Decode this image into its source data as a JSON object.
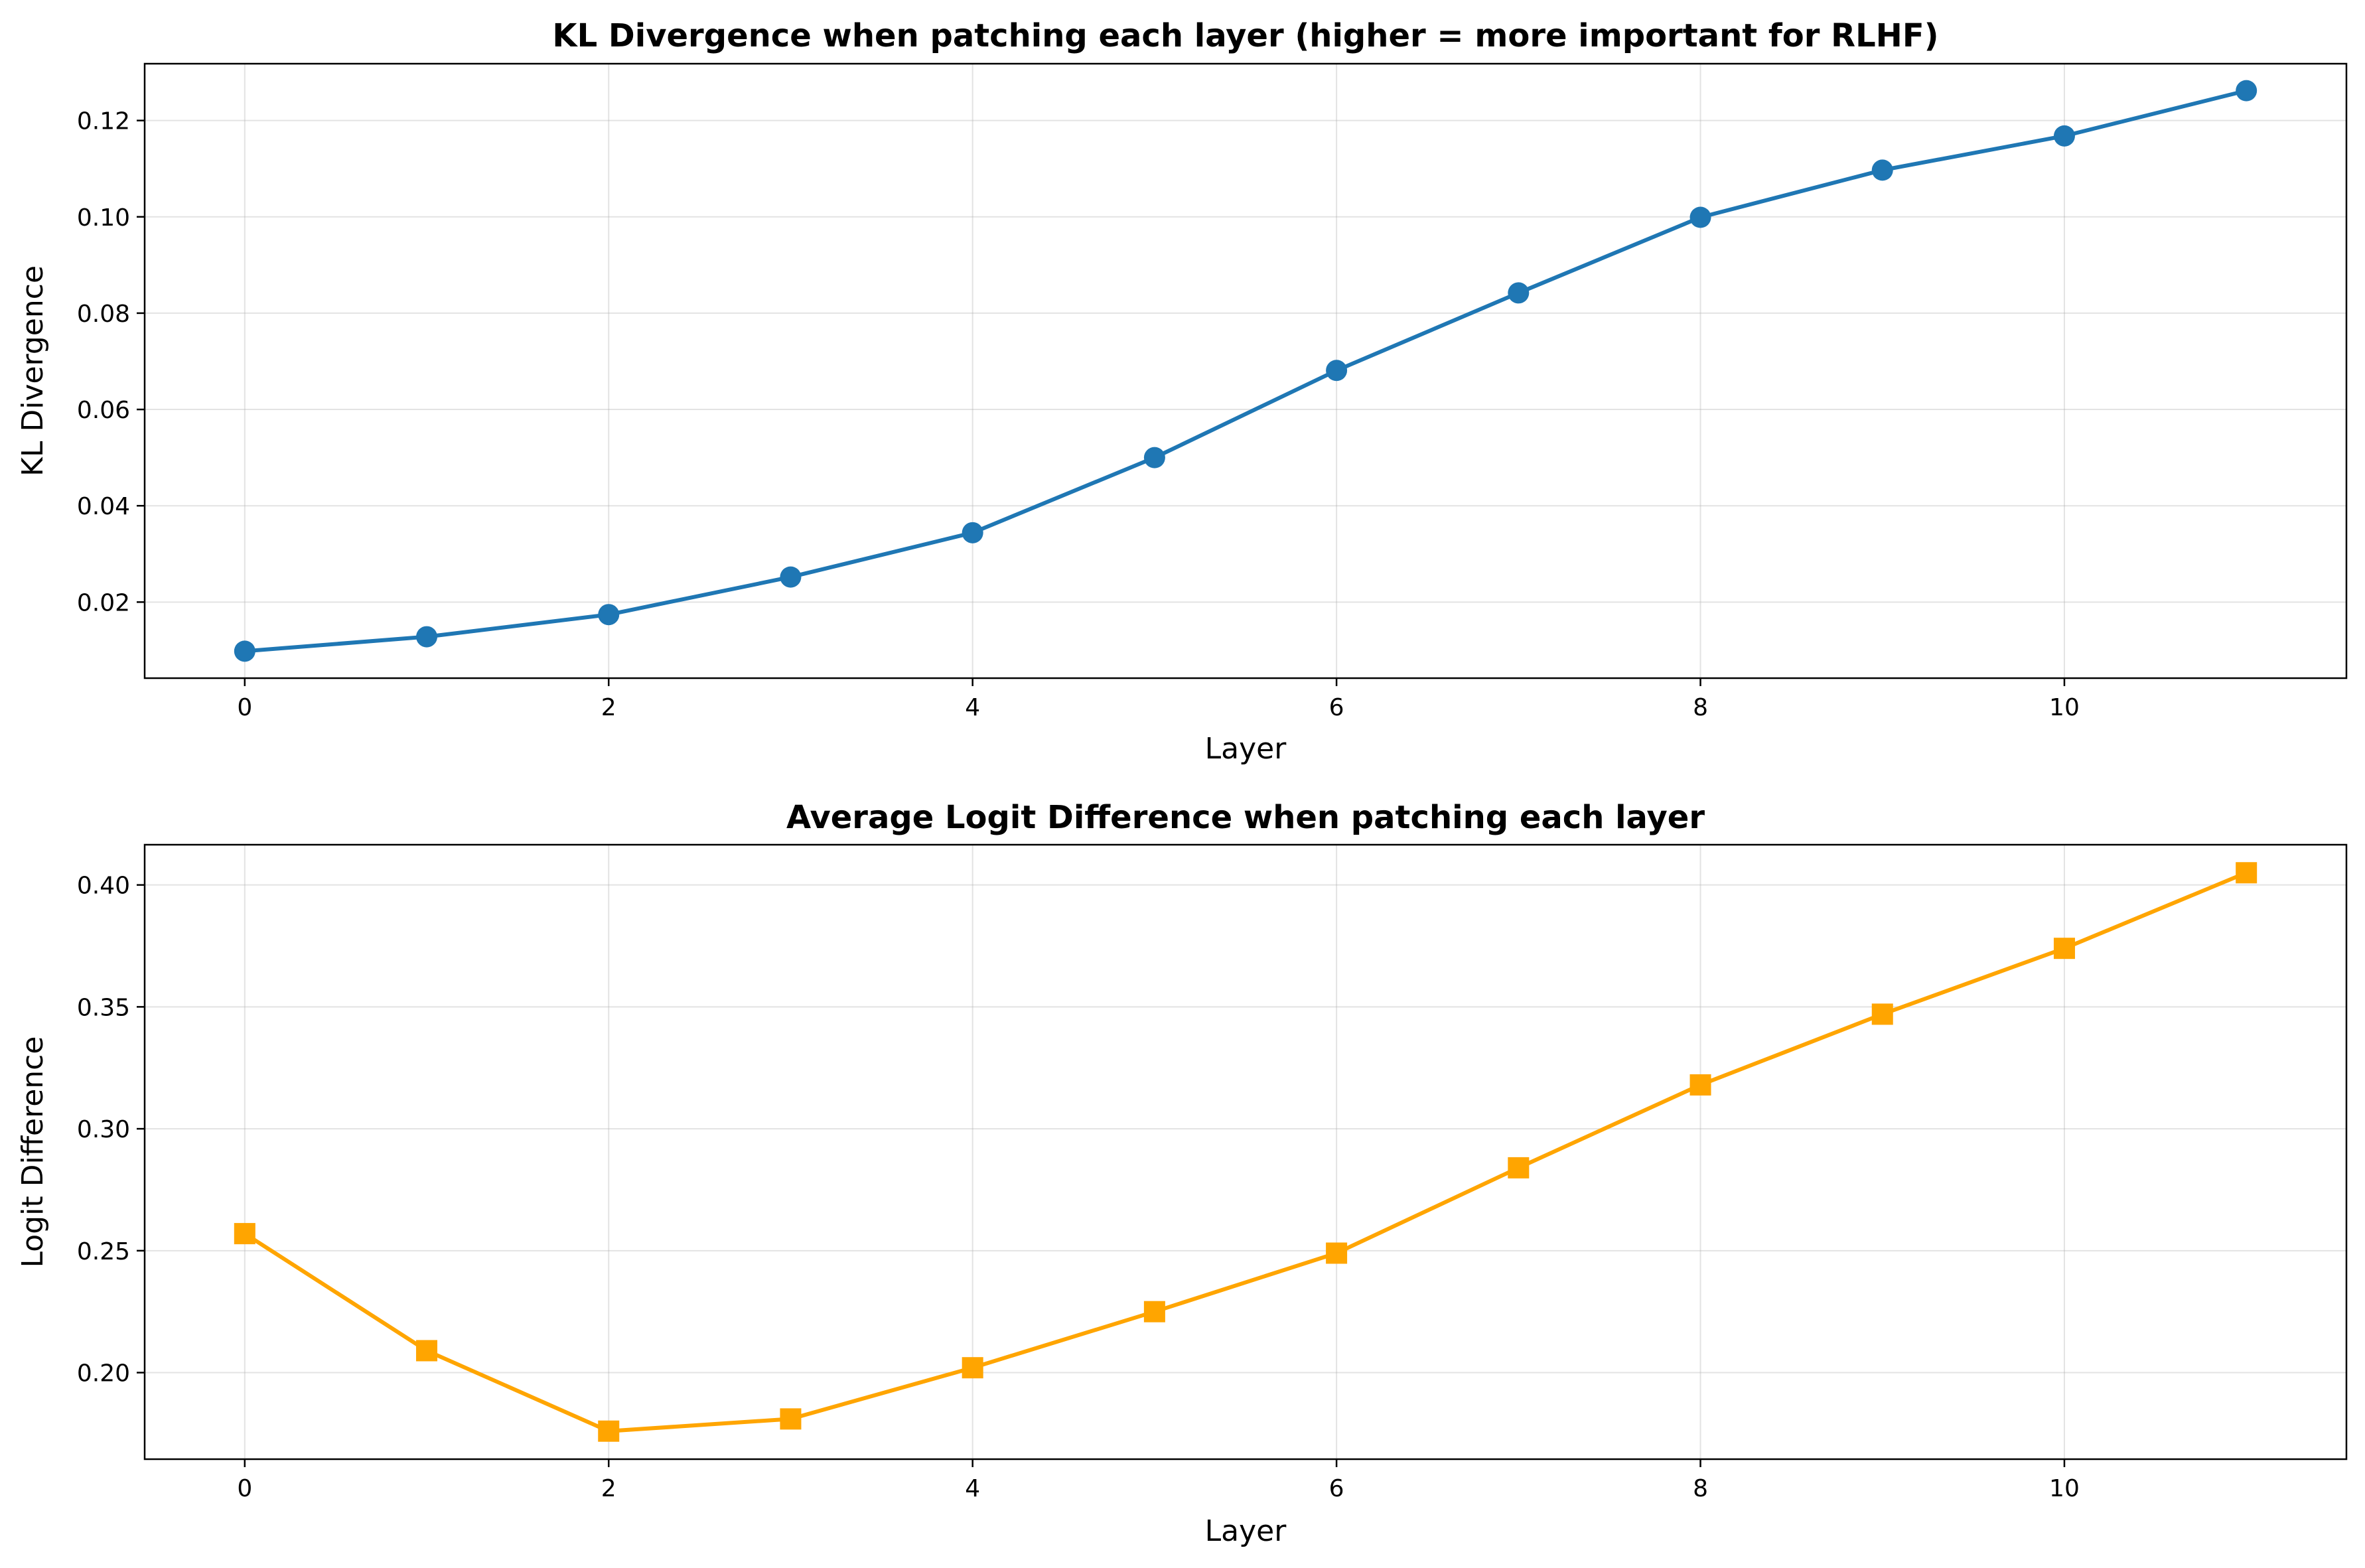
{
  "chart_data": [
    {
      "type": "line",
      "title": "KL Divergence when patching each layer (higher = more important for RLHF)",
      "xlabel": "Layer",
      "ylabel": "KL Divergence",
      "x": [
        0,
        1,
        2,
        3,
        4,
        5,
        6,
        7,
        8,
        9,
        10,
        11
      ],
      "series": [
        {
          "values": [
            0.0098,
            0.0128,
            0.0174,
            0.0252,
            0.0344,
            0.05,
            0.0681,
            0.0842,
            0.0999,
            0.1097,
            0.1168,
            0.1262
          ],
          "color": "#1f77b4",
          "marker": "circle"
        }
      ],
      "xticks": [
        0,
        2,
        4,
        6,
        8,
        10
      ],
      "xtick_labels": [
        "0",
        "2",
        "4",
        "6",
        "8",
        "10"
      ],
      "yticks": [
        0.02,
        0.04,
        0.06,
        0.08,
        0.1,
        0.12
      ],
      "ytick_labels": [
        "0.02",
        "0.04",
        "0.06",
        "0.08",
        "0.10",
        "0.12"
      ],
      "xlim": [
        -0.55,
        11.55
      ],
      "ylim": [
        0.0042,
        0.1318
      ],
      "grid": true
    },
    {
      "type": "line",
      "title": "Average Logit Difference when patching each layer",
      "xlabel": "Layer",
      "ylabel": "Logit Difference",
      "x": [
        0,
        1,
        2,
        3,
        4,
        5,
        6,
        7,
        8,
        9,
        10,
        11
      ],
      "series": [
        {
          "values": [
            0.257,
            0.209,
            0.176,
            0.181,
            0.202,
            0.225,
            0.249,
            0.284,
            0.318,
            0.347,
            0.374,
            0.405
          ],
          "color": "#ffa500",
          "marker": "square"
        }
      ],
      "xticks": [
        0,
        2,
        4,
        6,
        8,
        10
      ],
      "xtick_labels": [
        "0",
        "2",
        "4",
        "6",
        "8",
        "10"
      ],
      "yticks": [
        0.2,
        0.25,
        0.3,
        0.35,
        0.4
      ],
      "ytick_labels": [
        "0.20",
        "0.25",
        "0.30",
        "0.35",
        "0.40"
      ],
      "xlim": [
        -0.55,
        11.55
      ],
      "ylim": [
        0.1645,
        0.4165
      ],
      "grid": true
    }
  ]
}
